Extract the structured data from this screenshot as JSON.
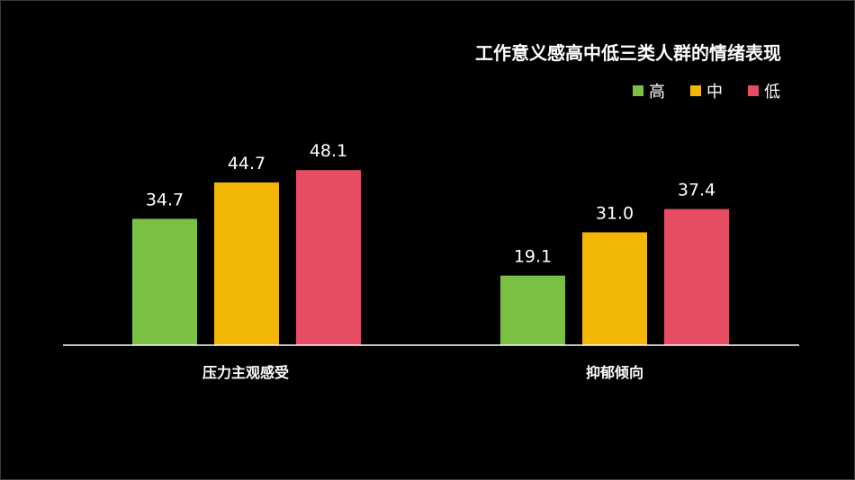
{
  "chart_data": {
    "type": "bar",
    "title": "工作意义感高中低三类人群的情绪表现",
    "categories": [
      "压力主观感受",
      "抑郁倾向"
    ],
    "series": [
      {
        "name": "高",
        "values": [
          34.7,
          19.1
        ],
        "color": "#7ac143"
      },
      {
        "name": "中",
        "values": [
          44.7,
          31.0
        ],
        "color": "#f2b705"
      },
      {
        "name": "低",
        "values": [
          48.1,
          37.4
        ],
        "color": "#e64d62"
      }
    ],
    "value_labels": [
      [
        "34.7",
        "19.1"
      ],
      [
        "44.7",
        "31.0"
      ],
      [
        "48.1",
        "37.4"
      ]
    ],
    "ylim": [
      0,
      60
    ],
    "grid": false,
    "legend_position": "top-right",
    "background": "#000000",
    "axis_color": "#ffffff",
    "text_color": "#ffffff"
  }
}
